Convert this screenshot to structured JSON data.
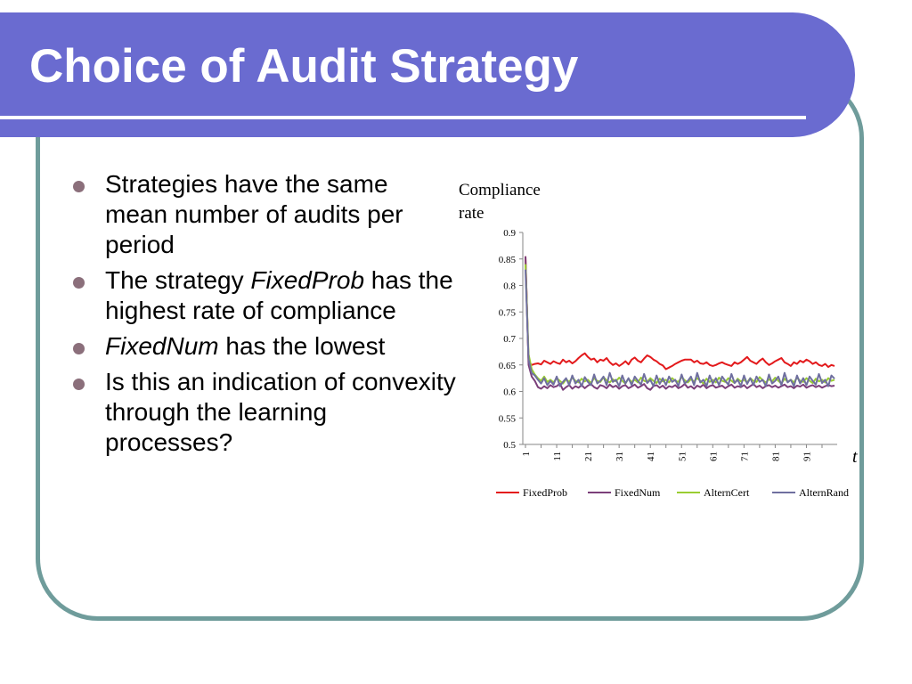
{
  "title": "Choice of Audit Strategy",
  "bullets": [
    {
      "parts": [
        {
          "text": "Strategies have the same mean number of audits per period",
          "italic": false
        }
      ]
    },
    {
      "parts": [
        {
          "text": "The strategy ",
          "italic": false
        },
        {
          "text": "FixedProb",
          "italic": true
        },
        {
          "text": " has the highest rate of compliance",
          "italic": false
        }
      ]
    },
    {
      "parts": [
        {
          "text": "FixedNum",
          "italic": true
        },
        {
          "text": " has the lowest",
          "italic": false
        }
      ]
    },
    {
      "parts": [
        {
          "text": "Is this an indication of convexity through the learning processes?",
          "italic": false
        }
      ]
    }
  ],
  "colors": {
    "title_bar": "#6a6bd0",
    "frame_border": "#6f9c9b",
    "bullet": "#8b6f7b"
  },
  "chart_data": {
    "type": "line",
    "ylabel_lines": [
      "Compliance",
      "rate"
    ],
    "xlabel": "t",
    "ylim": [
      0.5,
      0.9
    ],
    "yticks": [
      0.5,
      0.55,
      0.6,
      0.65,
      0.7,
      0.75,
      0.8,
      0.85,
      0.9
    ],
    "ytick_labels": [
      "0.5",
      "0.55",
      "0.6",
      "0.65",
      "0.7",
      "0.75",
      "0.8",
      "0.85",
      "0.9"
    ],
    "xlim": [
      1,
      100
    ],
    "xticks": [
      1,
      11,
      21,
      31,
      41,
      51,
      61,
      71,
      81,
      91
    ],
    "xtick_labels": [
      "1",
      "11",
      "21",
      "31",
      "41",
      "51",
      "61",
      "71",
      "81",
      "91"
    ],
    "grid": false,
    "legend_position": "bottom",
    "series": [
      {
        "name": "FixedProb",
        "color": "#e31a1c",
        "values": [
          0.855,
          0.655,
          0.65,
          0.652,
          0.653,
          0.651,
          0.658,
          0.655,
          0.652,
          0.657,
          0.654,
          0.652,
          0.66,
          0.655,
          0.658,
          0.653,
          0.657,
          0.663,
          0.668,
          0.672,
          0.665,
          0.66,
          0.662,
          0.655,
          0.66,
          0.658,
          0.663,
          0.655,
          0.65,
          0.653,
          0.648,
          0.652,
          0.657,
          0.651,
          0.66,
          0.664,
          0.658,
          0.655,
          0.662,
          0.668,
          0.665,
          0.66,
          0.657,
          0.652,
          0.649,
          0.642,
          0.645,
          0.648,
          0.652,
          0.655,
          0.658,
          0.66,
          0.66,
          0.66,
          0.655,
          0.658,
          0.653,
          0.652,
          0.655,
          0.65,
          0.648,
          0.65,
          0.653,
          0.655,
          0.652,
          0.65,
          0.648,
          0.655,
          0.652,
          0.655,
          0.66,
          0.665,
          0.658,
          0.655,
          0.652,
          0.658,
          0.662,
          0.655,
          0.65,
          0.653,
          0.657,
          0.66,
          0.663,
          0.655,
          0.652,
          0.648,
          0.655,
          0.652,
          0.658,
          0.655,
          0.66,
          0.657,
          0.652,
          0.655,
          0.65,
          0.648,
          0.652,
          0.646,
          0.65,
          0.648
        ]
      },
      {
        "name": "FixedNum",
        "color": "#7b3f7a",
        "values": [
          0.855,
          0.65,
          0.628,
          0.62,
          0.608,
          0.605,
          0.61,
          0.606,
          0.612,
          0.608,
          0.61,
          0.615,
          0.603,
          0.608,
          0.612,
          0.605,
          0.61,
          0.607,
          0.612,
          0.606,
          0.611,
          0.614,
          0.608,
          0.605,
          0.612,
          0.61,
          0.606,
          0.613,
          0.608,
          0.611,
          0.605,
          0.61,
          0.612,
          0.606,
          0.609,
          0.613,
          0.607,
          0.61,
          0.614,
          0.606,
          0.603,
          0.61,
          0.612,
          0.607,
          0.611,
          0.605,
          0.61,
          0.608,
          0.612,
          0.606,
          0.609,
          0.614,
          0.607,
          0.61,
          0.605,
          0.611,
          0.608,
          0.613,
          0.606,
          0.61,
          0.612,
          0.607,
          0.609,
          0.611,
          0.606,
          0.61,
          0.613,
          0.607,
          0.61,
          0.608,
          0.612,
          0.606,
          0.61,
          0.614,
          0.608,
          0.611,
          0.606,
          0.61,
          0.612,
          0.608,
          0.611,
          0.607,
          0.61,
          0.613,
          0.608,
          0.61,
          0.606,
          0.611,
          0.609,
          0.613,
          0.607,
          0.61,
          0.612,
          0.608,
          0.611,
          0.607,
          0.61,
          0.612,
          0.61,
          0.611
        ]
      },
      {
        "name": "AlternCert",
        "color": "#9acd32",
        "values": [
          0.84,
          0.67,
          0.642,
          0.632,
          0.625,
          0.62,
          0.628,
          0.618,
          0.622,
          0.617,
          0.625,
          0.62,
          0.615,
          0.623,
          0.618,
          0.626,
          0.62,
          0.617,
          0.624,
          0.619,
          0.622,
          0.616,
          0.625,
          0.62,
          0.618,
          0.627,
          0.621,
          0.617,
          0.623,
          0.619,
          0.626,
          0.62,
          0.615,
          0.624,
          0.618,
          0.622,
          0.617,
          0.626,
          0.62,
          0.618,
          0.625,
          0.62,
          0.616,
          0.624,
          0.619,
          0.622,
          0.617,
          0.625,
          0.62,
          0.618,
          0.627,
          0.621,
          0.617,
          0.623,
          0.619,
          0.625,
          0.62,
          0.615,
          0.624,
          0.618,
          0.622,
          0.617,
          0.626,
          0.62,
          0.618,
          0.625,
          0.62,
          0.616,
          0.624,
          0.619,
          0.622,
          0.617,
          0.625,
          0.62,
          0.618,
          0.627,
          0.621,
          0.617,
          0.623,
          0.619,
          0.626,
          0.62,
          0.615,
          0.624,
          0.618,
          0.622,
          0.617,
          0.626,
          0.62,
          0.618,
          0.625,
          0.62,
          0.616,
          0.624,
          0.619,
          0.622,
          0.617,
          0.625,
          0.62,
          0.622
        ]
      },
      {
        "name": "AlternRand",
        "color": "#6f6f9f",
        "values": [
          0.83,
          0.66,
          0.635,
          0.63,
          0.622,
          0.615,
          0.625,
          0.612,
          0.62,
          0.613,
          0.628,
          0.61,
          0.618,
          0.625,
          0.612,
          0.63,
          0.615,
          0.622,
          0.61,
          0.627,
          0.618,
          0.612,
          0.632,
          0.615,
          0.62,
          0.628,
          0.612,
          0.635,
          0.618,
          0.622,
          0.61,
          0.63,
          0.615,
          0.625,
          0.612,
          0.628,
          0.62,
          0.613,
          0.633,
          0.616,
          0.622,
          0.61,
          0.63,
          0.614,
          0.625,
          0.612,
          0.628,
          0.618,
          0.622,
          0.61,
          0.632,
          0.615,
          0.62,
          0.628,
          0.612,
          0.635,
          0.617,
          0.622,
          0.61,
          0.63,
          0.615,
          0.625,
          0.612,
          0.628,
          0.62,
          0.613,
          0.633,
          0.616,
          0.622,
          0.61,
          0.63,
          0.614,
          0.625,
          0.612,
          0.628,
          0.618,
          0.622,
          0.61,
          0.632,
          0.615,
          0.62,
          0.628,
          0.612,
          0.635,
          0.617,
          0.622,
          0.61,
          0.63,
          0.615,
          0.625,
          0.612,
          0.628,
          0.62,
          0.613,
          0.633,
          0.616,
          0.622,
          0.61,
          0.63,
          0.624
        ]
      }
    ]
  }
}
